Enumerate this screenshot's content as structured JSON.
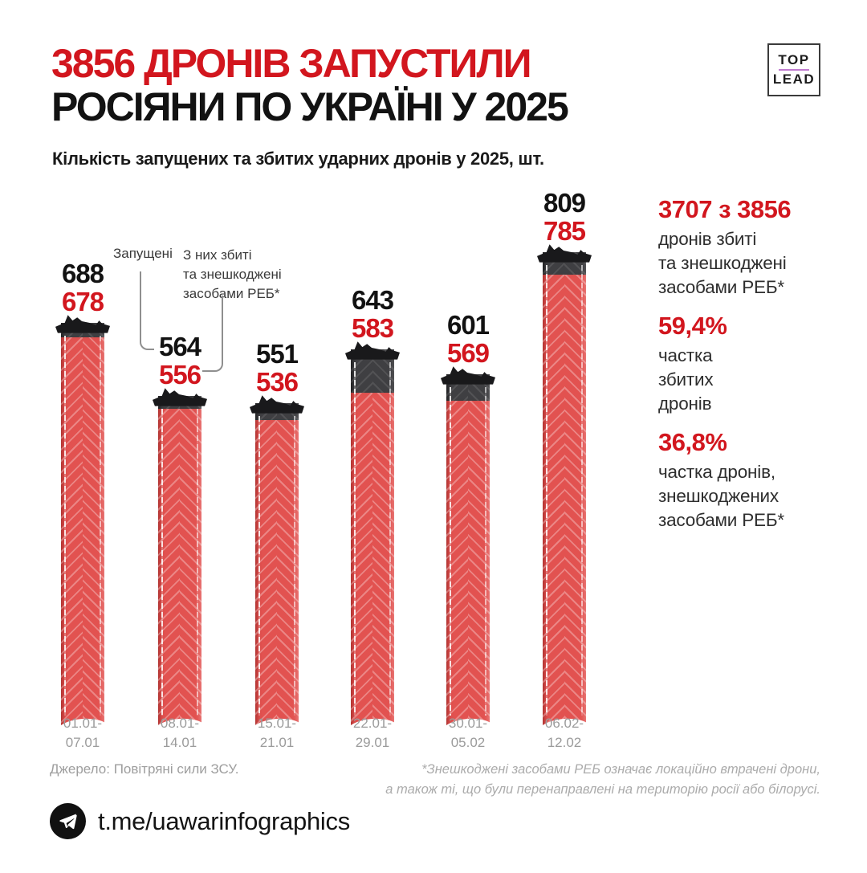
{
  "header": {
    "title_line1": "3856 ДРОНІВ ЗАПУСТИЛИ",
    "title_line2": "РОСІЯНИ ПО УКРАЇНІ У 2025",
    "subtitle": "Кількість запущених та збитих ударних дронів у 2025, шт."
  },
  "logo": {
    "top": "TOP",
    "lead": "LEAD"
  },
  "legend": {
    "launched_label": "Запущені",
    "destroyed_lines": [
      "З них збиті",
      "та знешкоджені",
      "засобами РЕБ*"
    ]
  },
  "chart_data": {
    "type": "bar",
    "title": "Кількість запущених та збитих ударних дронів у 2025, шт.",
    "categories": [
      "01.01-07.01",
      "08.01-14.01",
      "15.01-21.01",
      "22.01-29.01",
      "30.01-05.02",
      "06.02-12.02"
    ],
    "series": [
      {
        "name": "Запущені",
        "label_color": "#121212",
        "values": [
          688,
          564,
          551,
          643,
          601,
          809
        ]
      },
      {
        "name": "З них збиті та знешкоджені засобами РЕБ*",
        "label_color": "#d2161e",
        "values": [
          678,
          556,
          536,
          583,
          569,
          785
        ]
      }
    ],
    "ylim": [
      0,
      809
    ],
    "grid": false,
    "legend_position": "top-left",
    "bar_colors": {
      "destroyed_segment": "#e25250",
      "not_destroyed_segment": "#3f3f42",
      "drone_cap": "#19191b"
    }
  },
  "stats": [
    {
      "value": "3707 з 3856",
      "lines": [
        "дронів збиті",
        "та знешкоджені",
        "засобами РЕБ*"
      ]
    },
    {
      "value": "59,4%",
      "lines": [
        "частка",
        "збитих",
        "дронів"
      ]
    },
    {
      "value": "36,8%",
      "lines": [
        "частка дронів,",
        "знешкоджених",
        "засобами РЕБ*"
      ]
    }
  ],
  "source": "Джерело: Повітряні сили ЗСУ.",
  "footnote_lines": [
    "*Знешкоджені засобами РЕБ означає локаційно втрачені дрони,",
    "а також ті, що були перенаправлені на територію росії або білорусі."
  ],
  "footer": {
    "link": "t.me/uawarinfographics",
    "icon": "telegram-icon"
  },
  "colors": {
    "accent_red": "#d2161e",
    "bar_red": "#e25250",
    "bar_dark": "#3f3f42",
    "text_black": "#121212",
    "muted_gray": "#9b9b9b",
    "logo_purple": "#c07ad0"
  }
}
